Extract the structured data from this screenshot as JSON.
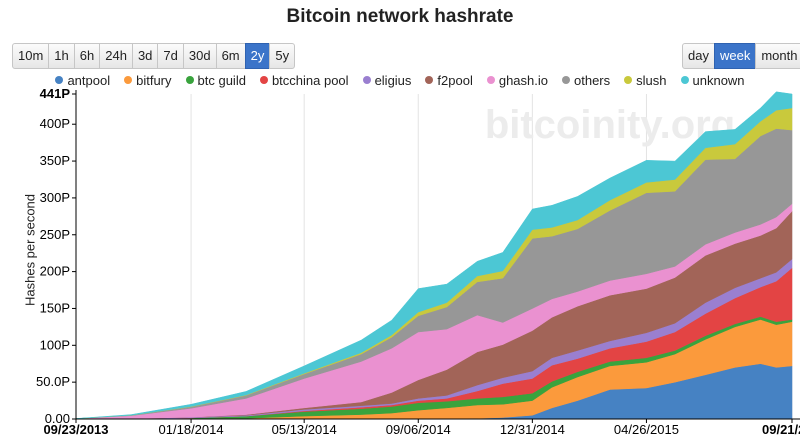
{
  "title": "Bitcoin network hashrate",
  "range_buttons": [
    {
      "label": "10m",
      "active": false
    },
    {
      "label": "1h",
      "active": false
    },
    {
      "label": "6h",
      "active": false
    },
    {
      "label": "24h",
      "active": false
    },
    {
      "label": "3d",
      "active": false
    },
    {
      "label": "7d",
      "active": false
    },
    {
      "label": "30d",
      "active": false
    },
    {
      "label": "6m",
      "active": false
    },
    {
      "label": "2y",
      "active": true
    },
    {
      "label": "5y",
      "active": false
    }
  ],
  "interval_buttons": [
    {
      "label": "day",
      "active": false
    },
    {
      "label": "week",
      "active": true
    },
    {
      "label": "month",
      "active": false
    }
  ],
  "watermark": "bitcoinity.org",
  "colors": {
    "active_button": "#3b74c9"
  },
  "chart_data": {
    "type": "area",
    "stacked": true,
    "title": "Bitcoin network hashrate",
    "xlabel": "",
    "ylabel": "Hashes per second",
    "ylim": [
      0,
      441
    ],
    "y_unit": "PH/s",
    "y_ticks": [
      "0.00",
      "50.0P",
      "100P",
      "150P",
      "200P",
      "250P",
      "300P",
      "350P",
      "400P",
      "441P"
    ],
    "y_tick_values": [
      0,
      50,
      100,
      150,
      200,
      250,
      300,
      350,
      400,
      441
    ],
    "x_ticks": [
      "09/23/2013",
      "01/18/2014",
      "05/13/2014",
      "09/06/2014",
      "12/31/2014",
      "04/26/2015",
      "09/21/2015"
    ],
    "x_tick_bold": [
      "09/23/2013",
      "09/21/2015"
    ],
    "x_dates": [
      "2013-09-23",
      "2013-11-18",
      "2014-01-18",
      "2014-03-15",
      "2014-05-13",
      "2014-07-10",
      "2014-08-10",
      "2014-09-06",
      "2014-10-05",
      "2014-11-05",
      "2014-12-01",
      "2014-12-31",
      "2015-01-20",
      "2015-02-15",
      "2015-03-20",
      "2015-04-26",
      "2015-05-25",
      "2015-06-25",
      "2015-07-25",
      "2015-08-20",
      "2015-09-05",
      "2015-09-21"
    ],
    "legend_position": "top",
    "grid": "vertical",
    "series": [
      {
        "name": "antpool",
        "color": "#4682c3",
        "values": [
          0,
          0,
          0,
          0,
          0,
          0,
          0,
          0,
          0,
          1,
          2,
          5,
          15,
          25,
          40,
          42,
          50,
          60,
          70,
          75,
          70,
          72
        ]
      },
      {
        "name": "bitfury",
        "color": "#fb9a3c",
        "values": [
          0,
          0,
          0.5,
          1,
          4,
          6,
          8,
          12,
          15,
          18,
          18,
          20,
          28,
          32,
          32,
          35,
          38,
          48,
          55,
          60,
          58,
          60
        ]
      },
      {
        "name": "btc guild",
        "color": "#39a33d",
        "values": [
          0,
          0,
          1,
          3,
          6,
          8,
          9,
          10,
          9,
          9,
          10,
          10,
          8,
          7,
          6,
          6,
          5,
          5,
          4,
          4,
          4,
          3
        ]
      },
      {
        "name": "btcchina pool",
        "color": "#e34444",
        "values": [
          0,
          0,
          0,
          0,
          1,
          2,
          2,
          3,
          4,
          10,
          18,
          20,
          22,
          18,
          18,
          22,
          25,
          30,
          35,
          40,
          55,
          70
        ]
      },
      {
        "name": "eligius",
        "color": "#9a7fd0",
        "values": [
          0,
          0.5,
          1,
          1,
          2,
          2,
          2,
          3,
          4,
          8,
          8,
          10,
          10,
          11,
          10,
          12,
          12,
          15,
          14,
          12,
          12,
          12
        ]
      },
      {
        "name": "f2pool",
        "color": "#a26458",
        "values": [
          0,
          0,
          0,
          1,
          2,
          5,
          15,
          25,
          35,
          45,
          45,
          55,
          55,
          60,
          62,
          60,
          62,
          64,
          60,
          58,
          60,
          65
        ]
      },
      {
        "name": "ghash.io",
        "color": "#ea91d0",
        "values": [
          0.5,
          4,
          12,
          22,
          40,
          55,
          60,
          65,
          55,
          50,
          30,
          30,
          25,
          20,
          20,
          20,
          15,
          15,
          15,
          15,
          15,
          10
        ]
      },
      {
        "name": "others",
        "color": "#979797",
        "values": [
          0,
          0.5,
          2,
          4,
          6,
          10,
          15,
          22,
          30,
          45,
          60,
          95,
          85,
          85,
          95,
          110,
          102,
          115,
          100,
          120,
          120,
          100
        ]
      },
      {
        "name": "slush",
        "color": "#c9c93c",
        "values": [
          0,
          0,
          0.5,
          0.5,
          1,
          2,
          3,
          5,
          6,
          8,
          10,
          12,
          12,
          12,
          14,
          14,
          16,
          16,
          20,
          20,
          25,
          30
        ]
      },
      {
        "name": "unknown",
        "color": "#4cc7d4",
        "values": [
          0.2,
          1,
          3,
          5,
          10,
          17,
          20,
          32,
          25,
          20,
          25,
          28,
          30,
          32,
          30,
          30,
          25,
          22,
          20,
          18,
          25,
          19
        ]
      }
    ]
  }
}
